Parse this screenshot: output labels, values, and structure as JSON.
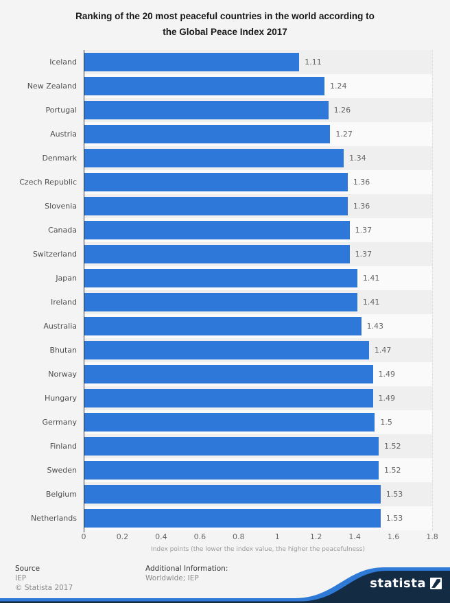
{
  "title": {
    "line1": "Ranking of the 20 most peaceful countries in the world according to",
    "line2": "the Global Peace Index 2017"
  },
  "chart_data": {
    "type": "bar",
    "orientation": "horizontal",
    "title": "Ranking of the 20 most peaceful countries in the world according to the Global Peace Index 2017",
    "categories": [
      "Iceland",
      "New Zealand",
      "Portugal",
      "Austria",
      "Denmark",
      "Czech Republic",
      "Slovenia",
      "Canada",
      "Switzerland",
      "Japan",
      "Ireland",
      "Australia",
      "Bhutan",
      "Norway",
      "Hungary",
      "Germany",
      "Finland",
      "Sweden",
      "Belgium",
      "Netherlands"
    ],
    "values": [
      1.11,
      1.24,
      1.26,
      1.27,
      1.34,
      1.36,
      1.36,
      1.37,
      1.37,
      1.41,
      1.41,
      1.43,
      1.47,
      1.49,
      1.49,
      1.5,
      1.52,
      1.52,
      1.53,
      1.53
    ],
    "xlabel": "Index points (the lower the index value, the higher the peacefulness)",
    "ylabel": "",
    "xlim": [
      0,
      1.8
    ],
    "xticks": [
      0,
      0.2,
      0.4,
      0.6,
      0.8,
      1,
      1.2,
      1.4,
      1.6,
      1.8
    ],
    "grid": "vertical-dashed",
    "legend": "none",
    "bar_color": "#2e78da"
  },
  "footer": {
    "source_heading": "Source",
    "source_line1": "IEP",
    "source_line2": "© Statista 2017",
    "additional_heading": "Additional Information:",
    "additional_line1": "Worldwide; IEP",
    "brand": "statista"
  },
  "colors": {
    "background": "#f4f4f4",
    "band_dark": "#efefef",
    "band_light": "#fafafa",
    "bar": "#2e78da",
    "axis": "#333333",
    "gridline": "#dcdcdc",
    "footer_navy": "#142b44",
    "footer_blue": "#2f7ad6",
    "brand_text": "#ffffff"
  }
}
